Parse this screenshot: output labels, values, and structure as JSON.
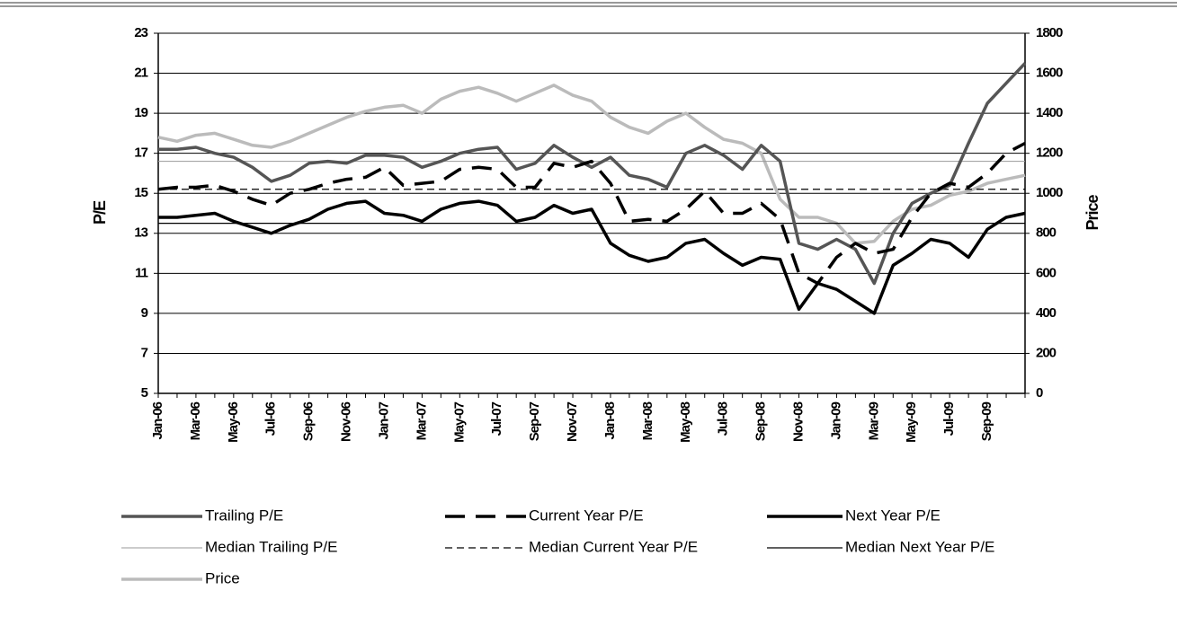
{
  "chart_data": {
    "type": "line",
    "y_label": "P/E",
    "y2_label": "Price",
    "categories": [
      "Jan-06",
      null,
      "Mar-06",
      null,
      "May-06",
      null,
      "Jul-06",
      null,
      "Sep-06",
      null,
      "Nov-06",
      null,
      "Jan-07",
      null,
      "Mar-07",
      null,
      "May-07",
      null,
      "Jul-07",
      null,
      "Sep-07",
      null,
      "Nov-07",
      null,
      "Jan-08",
      null,
      "Mar-08",
      null,
      "May-08",
      null,
      "Jul-08",
      null,
      "Sep-08",
      null,
      "Nov-08",
      null,
      "Jan-09",
      null,
      "Mar-09",
      null,
      "May-09",
      null,
      "Jul-09",
      null,
      "Sep-09",
      null,
      null
    ],
    "ylim": [
      5,
      23
    ],
    "yticks": [
      5,
      7,
      9,
      11,
      13,
      15,
      17,
      19,
      21,
      23
    ],
    "y2lim": [
      0,
      1800
    ],
    "y2ticks": [
      0,
      200,
      400,
      600,
      800,
      1000,
      1200,
      1400,
      1600,
      1800
    ],
    "grid": true,
    "series": [
      {
        "name": "Trailing P/E",
        "color": "#555555",
        "dash": "solid",
        "width": 3.5,
        "values": [
          17.2,
          17.2,
          17.3,
          17.0,
          16.8,
          16.3,
          15.6,
          15.9,
          16.5,
          16.6,
          16.5,
          16.9,
          16.9,
          16.8,
          16.3,
          16.6,
          17.0,
          17.2,
          17.3,
          16.2,
          16.5,
          17.4,
          16.8,
          16.3,
          16.8,
          15.9,
          15.7,
          15.3,
          17.0,
          17.4,
          16.9,
          16.2,
          17.4,
          16.6,
          12.5,
          12.2,
          12.7,
          12.2,
          10.5,
          13.0,
          14.5,
          15.0,
          15.4,
          17.5,
          19.5,
          20.5,
          21.5
        ]
      },
      {
        "name": "Current Year P/E",
        "color": "#000000",
        "dash": "long",
        "width": 3.5,
        "values": [
          15.2,
          15.3,
          15.3,
          15.4,
          15.1,
          14.7,
          14.4,
          15.0,
          15.2,
          15.5,
          15.7,
          15.8,
          16.3,
          15.4,
          15.5,
          15.6,
          16.2,
          16.3,
          16.2,
          15.3,
          15.3,
          16.5,
          16.3,
          16.6,
          15.5,
          13.6,
          13.7,
          13.6,
          14.2,
          15.1,
          14.0,
          14.0,
          14.5,
          13.7,
          11.0,
          10.5,
          11.8,
          12.5,
          12.0,
          12.2,
          13.8,
          15.0,
          15.5,
          15.3,
          16.0,
          17.0,
          17.5
        ]
      },
      {
        "name": "Next Year P/E",
        "color": "#000000",
        "dash": "solid",
        "width": 3.5,
        "values": [
          13.8,
          13.8,
          13.9,
          14.0,
          13.6,
          13.3,
          13.0,
          13.4,
          13.7,
          14.2,
          14.5,
          14.6,
          14.0,
          13.9,
          13.6,
          14.2,
          14.5,
          14.6,
          14.4,
          13.6,
          13.8,
          14.4,
          14.0,
          14.2,
          12.5,
          11.9,
          11.6,
          11.8,
          12.5,
          12.7,
          12.0,
          11.4,
          11.8,
          11.7,
          9.2,
          10.5,
          10.2,
          9.6,
          9.0,
          11.4,
          12.0,
          12.7,
          12.5,
          11.8,
          13.2,
          13.8,
          14.0
        ]
      },
      {
        "name": "Median Trailing P/E",
        "color": "#999999",
        "dash": "solid",
        "width": 1,
        "value": 16.6
      },
      {
        "name": "Median Current Year P/E",
        "color": "#000000",
        "dash": "short",
        "width": 1.2,
        "value": 15.2
      },
      {
        "name": "Median Next Year P/E",
        "color": "#000000",
        "dash": "solid",
        "width": 1.2,
        "value": 13.5
      },
      {
        "name": "Price",
        "color": "#bbbbbb",
        "dash": "solid",
        "width": 3.5,
        "axis": "y2",
        "values": [
          1280,
          1260,
          1290,
          1300,
          1270,
          1240,
          1230,
          1260,
          1300,
          1340,
          1380,
          1410,
          1430,
          1440,
          1400,
          1470,
          1510,
          1530,
          1500,
          1460,
          1500,
          1540,
          1490,
          1460,
          1380,
          1330,
          1300,
          1360,
          1400,
          1330,
          1270,
          1250,
          1200,
          970,
          880,
          880,
          850,
          750,
          760,
          860,
          920,
          940,
          990,
          1010,
          1050,
          1070,
          1090
        ]
      }
    ]
  }
}
